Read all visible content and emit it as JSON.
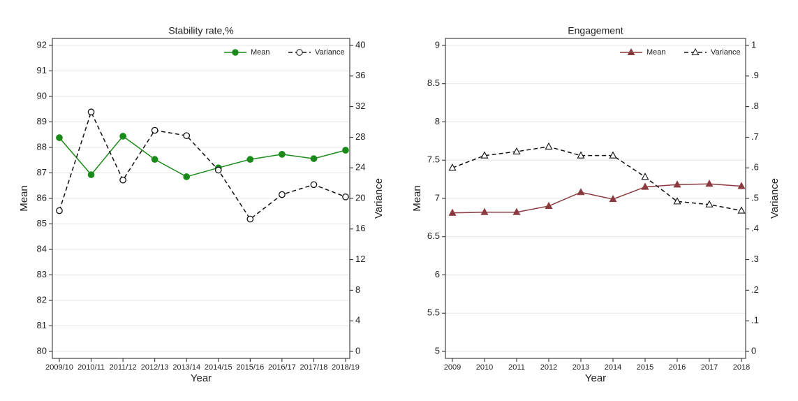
{
  "chart_data": [
    {
      "type": "line",
      "title": "Stability rate,%",
      "x_label": "Year",
      "y_label": "Mean",
      "y2_label": "Variance",
      "categories": [
        "2009/10",
        "2010/11",
        "2011/12",
        "2012/13",
        "2013/14",
        "2014/15",
        "2015/16",
        "2016/17",
        "2017/18",
        "2018/19"
      ],
      "series": [
        {
          "name": "Mean",
          "color": "#1a8a1a",
          "marker": "circle",
          "filled": true,
          "dashed": false,
          "values": [
            88.38,
            86.93,
            88.44,
            87.53,
            86.85,
            87.2,
            87.53,
            87.73,
            87.56,
            87.89
          ]
        },
        {
          "name": "Variance",
          "color": "#111111",
          "marker": "circle",
          "filled": false,
          "dashed": true,
          "axis": "y2",
          "values": [
            18.4,
            31.3,
            22.4,
            28.9,
            28.2,
            23.7,
            17.3,
            20.5,
            21.8,
            20.2
          ]
        }
      ],
      "ylim": [
        80,
        92
      ],
      "yticks": [
        80,
        81,
        82,
        83,
        84,
        85,
        86,
        87,
        88,
        89,
        90,
        91,
        92
      ],
      "y2lim": [
        0,
        40
      ],
      "y2ticks": [
        0,
        4,
        8,
        12,
        16,
        20,
        24,
        28,
        32,
        36,
        40
      ],
      "grid": true,
      "legend": "top-right"
    },
    {
      "type": "line",
      "title": "Engagement",
      "x_label": "Year",
      "y_label": "Mean",
      "y2_label": "Variance",
      "categories": [
        "2009",
        "2010",
        "2011",
        "2012",
        "2013",
        "2014",
        "2015",
        "2016",
        "2017",
        "2018"
      ],
      "series": [
        {
          "name": "Mean",
          "color": "#8b3a3f",
          "marker": "triangle",
          "filled": true,
          "dashed": false,
          "values": [
            6.81,
            6.82,
            6.82,
            6.9,
            7.08,
            6.99,
            7.15,
            7.18,
            7.19,
            7.16
          ]
        },
        {
          "name": "Variance",
          "color": "#111111",
          "marker": "triangle",
          "filled": false,
          "dashed": true,
          "axis": "y2",
          "values": [
            0.6,
            0.64,
            0.653,
            0.669,
            0.64,
            0.64,
            0.57,
            0.49,
            0.48,
            0.46
          ]
        }
      ],
      "ylim": [
        5,
        9
      ],
      "yticks": [
        5,
        5.5,
        6,
        6.5,
        7,
        7.5,
        8,
        8.5,
        9
      ],
      "y2lim": [
        0,
        1
      ],
      "y2ticks": [
        0,
        {
          "value": 0.1,
          "label": ".1"
        },
        {
          "value": 0.2,
          "label": ".2"
        },
        {
          "value": 0.3,
          "label": ".3"
        },
        {
          "value": 0.4,
          "label": ".4"
        },
        {
          "value": 0.5,
          "label": ".5"
        },
        {
          "value": 0.6,
          "label": ".6"
        },
        {
          "value": 0.7,
          "label": ".7"
        },
        {
          "value": 0.8,
          "label": ".8"
        },
        {
          "value": 0.9,
          "label": ".9"
        },
        1
      ],
      "grid": true,
      "legend": "top-right"
    }
  ]
}
